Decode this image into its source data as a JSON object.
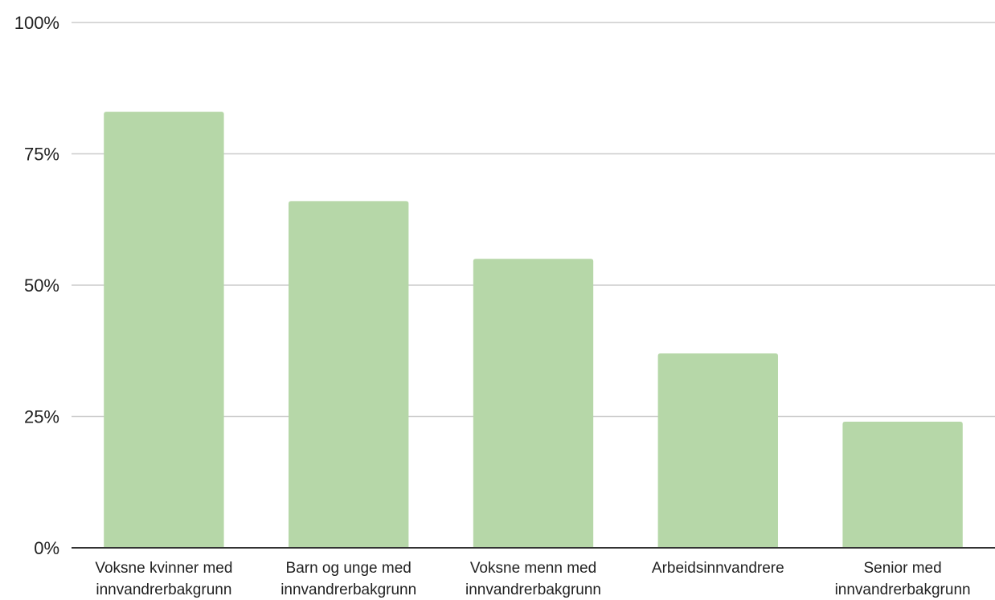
{
  "chart_data": {
    "type": "bar",
    "title": "",
    "xlabel": "",
    "ylabel": "",
    "categories": [
      [
        "Voksne kvinner med",
        "innvandrerbakgrunn"
      ],
      [
        "Barn og unge med",
        "innvandrerbakgrunn"
      ],
      [
        "Voksne menn med",
        "innvandrerbakgrunn"
      ],
      [
        "Arbeidsinnvandrere"
      ],
      [
        "Senior med",
        "innvandrerbakgrunn"
      ]
    ],
    "values": [
      83,
      66,
      55,
      37,
      24
    ],
    "ylim": [
      0,
      100
    ],
    "yticks": [
      0,
      25,
      50,
      75,
      100
    ],
    "ytick_labels": [
      "0%",
      "25%",
      "50%",
      "75%",
      "100%"
    ],
    "grid": true,
    "legend": "none",
    "colors": {
      "bar": "#b6d7a8",
      "grid": "#cccccc",
      "axis": "#333333",
      "text": "#222222"
    }
  }
}
